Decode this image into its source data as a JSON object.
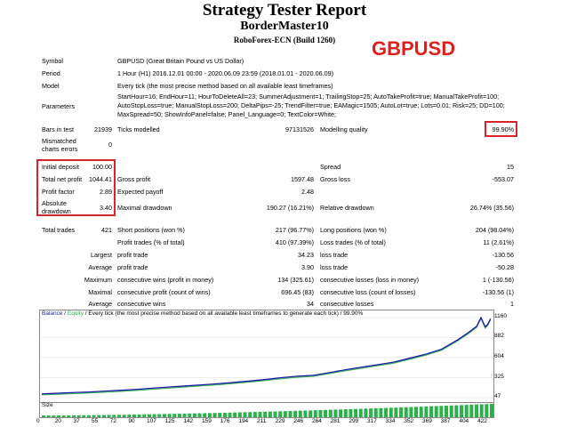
{
  "header": {
    "title": "Strategy Tester Report",
    "ea_name": "BorderMaster10",
    "server": "RoboForex-ECN (Build 1260)",
    "pair_badge": "GBPUSD"
  },
  "info": [
    {
      "label": "Symbol",
      "value": "GBPUSD (Great Britain Pound vs US Dollar)"
    },
    {
      "label": "Period",
      "value": "1 Hour (H1) 2016.12.01 00:00 - 2020.06.09 23:59 (2018.01.01 - 2020.06.09)"
    },
    {
      "label": "Model",
      "value": "Every tick (the most precise method based on all available least timeframes)"
    }
  ],
  "parameters": {
    "label": "Parameters",
    "lines": [
      "StartHour=16; EndHour=11; HourToDeleteAll=23; SummerAdjustment=1; TrailingStop=25; AutoTakeProfit=true; ManualTakeProfit=100;",
      "AutoStopLoss=true; ManualStopLoss=200; DeltaPips=-25; TrendFilter=true; EAMagic=1505; AutoLot=true; Lots=0.01; Risk=25; DD=100;",
      "MaxSpread=50; ShowInfoPanel=false; Panel_Language=0; TextColor=White;"
    ]
  },
  "bars": {
    "bars_label": "Bars in test",
    "bars_value": "21939",
    "ticks_label": "Ticks modelled",
    "ticks_value": "97131526",
    "quality_label": "Modelling quality",
    "quality_value": "99.90%",
    "mismatch_label_1": "Mismatched",
    "mismatch_label_2": "charts errors",
    "mismatch_value": "0"
  },
  "money": {
    "initial_deposit_label": "Initial deposit",
    "initial_deposit": "100.00",
    "spread_label": "Spread",
    "spread": "15",
    "net_profit_label": "Total net profit",
    "net_profit": "1044.41",
    "gross_profit_label": "Gross profit",
    "gross_profit": "1597.48",
    "gross_loss_label": "Gross loss",
    "gross_loss": "-553.07",
    "profit_factor_label": "Profit factor",
    "profit_factor": "2.89",
    "expected_payoff_label": "Expected payoff",
    "expected_payoff": "2.48",
    "abs_dd_label_1": "Absolute",
    "abs_dd_label_2": "drawdown",
    "abs_dd": "3.40",
    "max_dd_label": "Maximal drawdown",
    "max_dd": "190.27 (16.21%)",
    "rel_dd_label": "Relative drawdown",
    "rel_dd": "26.74% (35.56)"
  },
  "trades": {
    "total_label": "Total trades",
    "total": "421",
    "short_label": "Short positions (won %)",
    "short": "217 (96.77%)",
    "long_label": "Long positions (won %)",
    "long": "204 (98.04%)",
    "profit_trades_label": "Profit trades (% of total)",
    "profit_trades": "410 (97.39%)",
    "loss_trades_label": "Loss trades (% of total)",
    "loss_trades": "11 (2.61%)",
    "largest_label": "Largest",
    "largest_profit_label": "profit trade",
    "largest_profit": "34.23",
    "largest_loss_label": "loss trade",
    "largest_loss": "-130.56",
    "average_label": "Average",
    "average_profit_label": "profit trade",
    "average_profit": "3.90",
    "average_loss_label": "loss trade",
    "average_loss": "-50.28",
    "max_label": "Maximum",
    "max_cons_wins_label": "consecutive wins (profit in money)",
    "max_cons_wins": "134 (325.61)",
    "max_cons_losses_label": "consecutive losses (loss in money)",
    "max_cons_losses": "1 (-130.56)",
    "maximal_label": "Maximal",
    "maximal_cons_profit_label": "consecutive profit (count of wins)",
    "maximal_cons_profit": "696.45 (83)",
    "maximal_cons_loss_label": "consecutive loss (count of losses)",
    "maximal_cons_loss": "-130.56 (1)",
    "avg_label": "Average",
    "avg_cons_wins_label": "consecutive wins",
    "avg_cons_wins": "34",
    "avg_cons_losses_label": "consecutive losses",
    "avg_cons_losses": "1"
  },
  "chart_data": {
    "type": "line",
    "legend": {
      "balance": "Balance",
      "sep": " / ",
      "equity": "Equity",
      "rest": " / Every tick (the most precise method based on all available least timeframes to generate each tick) / 99.90%"
    },
    "colors": {
      "balance": "#1a1aa6",
      "equity": "#2bb14a",
      "size": "#2bb14a"
    },
    "y_ticks": [
      "1160",
      "882",
      "604",
      "325",
      "47"
    ],
    "y_tick_values": [
      1160,
      882,
      604,
      325,
      47
    ],
    "ylim": [
      47,
      1160
    ],
    "xlim": [
      0,
      422
    ],
    "x_ticks": [
      "0",
      "20",
      "37",
      "55",
      "72",
      "90",
      "107",
      "125",
      "142",
      "159",
      "176",
      "194",
      "211",
      "229",
      "246",
      "264",
      "281",
      "299",
      "317",
      "334",
      "352",
      "369",
      "387",
      "404",
      "422"
    ],
    "size_label": "Size",
    "series": [
      {
        "name": "Balance",
        "x": [
          0,
          15,
          30,
          45,
          60,
          75,
          90,
          105,
          120,
          135,
          150,
          165,
          180,
          195,
          210,
          225,
          240,
          255,
          270,
          285,
          300,
          315,
          330,
          345,
          360,
          375,
          390,
          400,
          408,
          412,
          416,
          418,
          421
        ],
        "y": [
          100,
          108,
          118,
          126,
          138,
          150,
          163,
          180,
          195,
          210,
          225,
          240,
          258,
          278,
          300,
          325,
          345,
          358,
          395,
          435,
          470,
          505,
          540,
          595,
          650,
          720,
          850,
          950,
          1040,
          1160,
          1030,
          1060,
          1144
        ]
      }
    ]
  }
}
